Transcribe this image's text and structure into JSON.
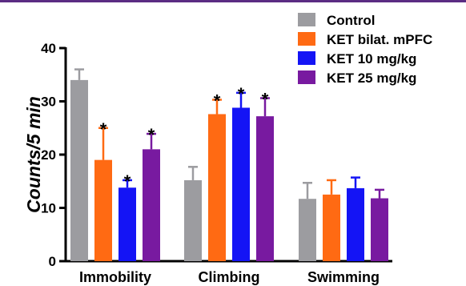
{
  "chart_data": {
    "type": "bar",
    "ylabel": "Counts/5 min",
    "ylim": [
      0,
      40
    ],
    "yticks": [
      "0",
      "10",
      "20",
      "30",
      "40"
    ],
    "categories": [
      "Immobility",
      "Climbing",
      "Swimming"
    ],
    "legend_position": "top-right",
    "grid": false,
    "significance_marker": "*",
    "series": [
      {
        "name": "Control",
        "color": "#9c9ca0",
        "values": [
          34,
          15.2,
          11.7
        ],
        "errors": [
          2.0,
          2.5,
          3.0
        ],
        "significant": [
          false,
          false,
          false
        ]
      },
      {
        "name": "KET bilat. mPFC",
        "color": "#ff6a13",
        "values": [
          19,
          27.6,
          12.5
        ],
        "errors": [
          6.0,
          2.7,
          2.7
        ],
        "significant": [
          true,
          true,
          false
        ]
      },
      {
        "name": "KET 10 mg/kg",
        "color": "#1414f5",
        "values": [
          13.8,
          28.8,
          13.7
        ],
        "errors": [
          1.4,
          2.8,
          2.0
        ],
        "significant": [
          true,
          true,
          false
        ]
      },
      {
        "name": "KET 25 mg/kg",
        "color": "#781aa0",
        "values": [
          21,
          27.2,
          11.8
        ],
        "errors": [
          2.9,
          3.4,
          1.6
        ],
        "significant": [
          true,
          true,
          false
        ]
      }
    ]
  }
}
